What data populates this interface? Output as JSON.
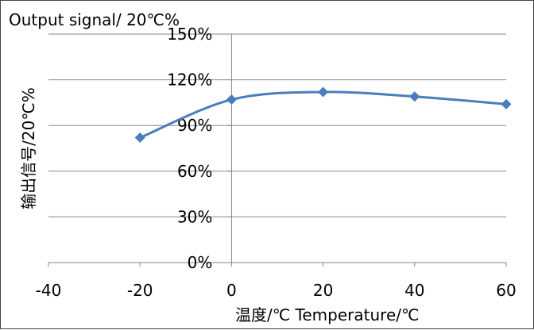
{
  "chart_data": {
    "type": "scatter",
    "title": "Output signal/ 20℃%",
    "xlabel": "温度/℃   Temperature/℃",
    "ylabel": "输出信号/20℃%",
    "xlim": [
      -40,
      60
    ],
    "ylim": [
      0,
      150
    ],
    "x_ticks": [
      -40,
      -20,
      0,
      20,
      40,
      60
    ],
    "x_tick_labels": [
      "-40",
      "-20",
      "0",
      "20",
      "40",
      "60"
    ],
    "y_ticks": [
      0,
      30,
      60,
      90,
      120,
      150
    ],
    "y_tick_labels": [
      "0%",
      "30%",
      "60%",
      "90%",
      "120%",
      "150%"
    ],
    "grid": "horizontal",
    "legend": "none",
    "series": [
      {
        "x": [
          -20,
          0,
          20,
          40,
          60
        ],
        "y": [
          82,
          107,
          112,
          109,
          104
        ],
        "line": "smooth",
        "marker": "diamond",
        "color": "#4A7EBB"
      }
    ]
  }
}
